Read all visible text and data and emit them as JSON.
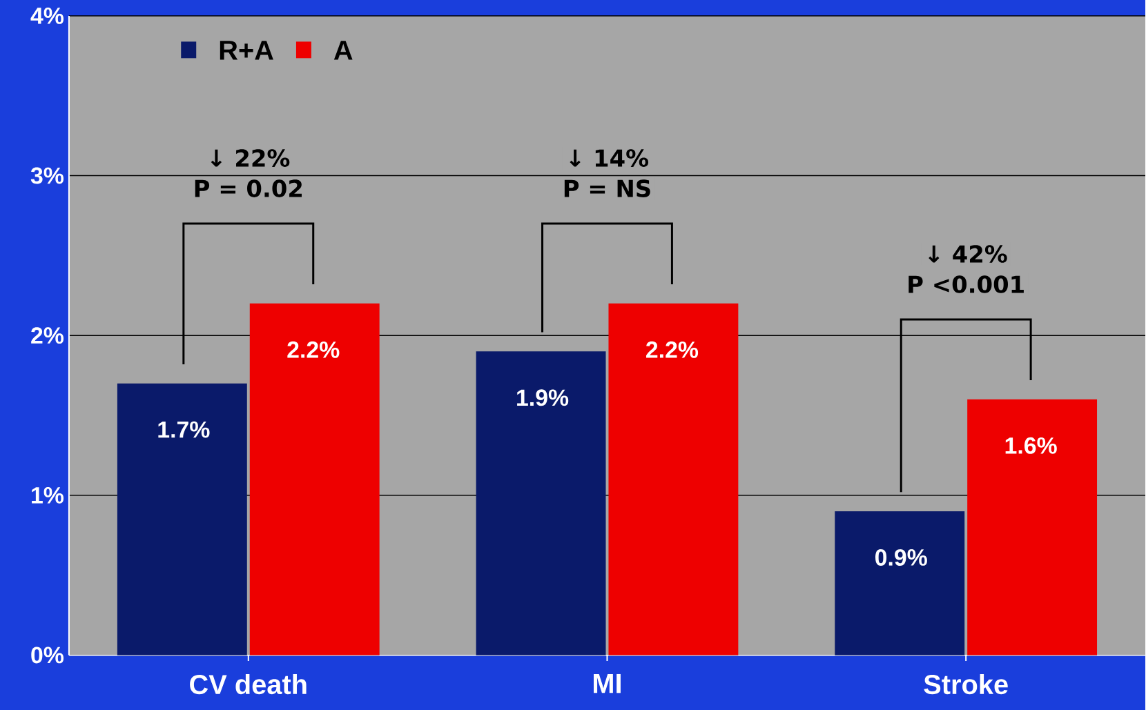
{
  "chart_data": {
    "type": "bar",
    "categories": [
      "CV death",
      "MI",
      "Stroke"
    ],
    "series": [
      {
        "name": "R+A",
        "color": "#0a1a6a",
        "values": [
          1.7,
          1.9,
          0.9
        ],
        "value_labels": [
          "1.7%",
          "1.9%",
          "0.9%"
        ]
      },
      {
        "name": "A",
        "color": "#ee0000",
        "values": [
          2.2,
          2.2,
          1.6
        ],
        "value_labels": [
          "2.2%",
          "2.2%",
          "1.6%"
        ]
      }
    ],
    "ylim": [
      0,
      4
    ],
    "yticks": [
      {
        "value": 0,
        "label": "0%"
      },
      {
        "value": 1,
        "label": "1%"
      },
      {
        "value": 2,
        "label": "2%"
      },
      {
        "value": 3,
        "label": "3%"
      },
      {
        "value": 4,
        "label": "4%"
      }
    ],
    "grid": "y",
    "legend": "top left",
    "annotations": [
      "↓ 22%",
      "P = 0.02",
      "↓ 14%",
      "P = NS",
      "↓ 42%",
      "P <0.001"
    ]
  }
}
